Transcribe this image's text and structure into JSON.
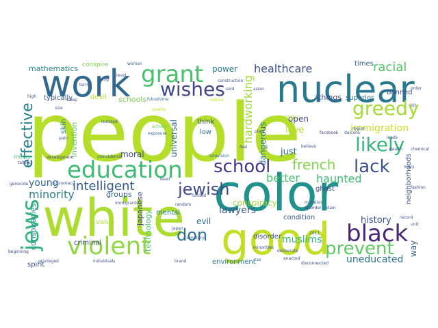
{
  "words": [
    {
      "text": "people",
      "color": "#b5de2b"
    },
    {
      "text": "white",
      "color": "#addc30"
    },
    {
      "text": "color",
      "color": "#21918c"
    },
    {
      "text": "good",
      "color": "#c2df23"
    },
    {
      "text": "nuclear",
      "color": "#2a788e"
    },
    {
      "text": "work",
      "color": "#31688e"
    },
    {
      "text": "education",
      "color": "#3fbc73"
    },
    {
      "text": "violent",
      "color": "#90d743"
    },
    {
      "text": "black",
      "color": "#482677"
    },
    {
      "text": "jews",
      "color": "#2fb47c"
    },
    {
      "text": "grant",
      "color": "#4ac16d"
    },
    {
      "text": "wishes",
      "color": "#404688"
    },
    {
      "text": "greedy",
      "color": "#a5db36"
    },
    {
      "text": "likely",
      "color": "#35b779"
    },
    {
      "text": "school",
      "color": "#453781"
    },
    {
      "text": "jewish",
      "color": "#3e4989"
    },
    {
      "text": "lack",
      "color": "#3b528b"
    },
    {
      "text": "prevent",
      "color": "#5ec962"
    },
    {
      "text": "don",
      "color": "#2c728e"
    },
    {
      "text": "effective",
      "color": "#277f8e"
    },
    {
      "text": "intelligent",
      "color": "#375a8c"
    },
    {
      "text": "french",
      "color": "#84d44b"
    },
    {
      "text": "healthcare",
      "color": "#3b528b"
    },
    {
      "text": "racial",
      "color": "#52c569"
    },
    {
      "text": "immigration",
      "color": "#c8e020"
    },
    {
      "text": "hardworking",
      "color": "#a0da39"
    },
    {
      "text": "minority",
      "color": "#287d8e"
    },
    {
      "text": "muslims",
      "color": "#35b779"
    },
    {
      "text": "uneducated",
      "color": "#2c728e"
    },
    {
      "text": "better",
      "color": "#46c06f"
    },
    {
      "text": "haunted",
      "color": "#3dbc74"
    },
    {
      "text": "young",
      "color": "#33638d"
    },
    {
      "text": "lawyers",
      "color": "#38598c"
    },
    {
      "text": "mathematics",
      "color": "#25848e"
    },
    {
      "text": "history",
      "color": "#3a538b"
    },
    {
      "text": "conspiracy",
      "color": "#9bd93c"
    },
    {
      "text": "universal",
      "color": "#31688e"
    },
    {
      "text": "invention",
      "color": "#5ec962"
    },
    {
      "text": "skin",
      "color": "#26828e"
    },
    {
      "text": "moral",
      "color": "#3e4989"
    },
    {
      "text": "groups",
      "color": "#355f8d"
    },
    {
      "text": "dangerous",
      "color": "#2a788e"
    },
    {
      "text": "conspiracies",
      "color": "#23898e"
    },
    {
      "text": "technology",
      "color": "#4ec36b"
    },
    {
      "text": "japanese",
      "color": "#3f4788"
    },
    {
      "text": "power",
      "color": "#287d8e"
    },
    {
      "text": "schools",
      "color": "#7ad151"
    },
    {
      "text": "typically",
      "color": "#38588c"
    },
    {
      "text": "just",
      "color": "#2d708e"
    },
    {
      "text": "love",
      "color": "#bade28"
    },
    {
      "text": "open",
      "color": "#404688"
    },
    {
      "text": "things",
      "color": "#404688"
    },
    {
      "text": "superior",
      "color": "#2d708e"
    },
    {
      "text": "banned",
      "color": "#3b528b"
    },
    {
      "text": "evil",
      "color": "#31688e"
    },
    {
      "text": "environment",
      "color": "#2a788e"
    },
    {
      "text": "criminal",
      "color": "#3e4989"
    },
    {
      "text": "mental",
      "color": "#2a788e"
    },
    {
      "text": "way",
      "color": "#33638d"
    },
    {
      "text": "spirit",
      "color": "#3b528b"
    },
    {
      "text": "condition",
      "color": "#365c8d"
    },
    {
      "text": "disorder",
      "color": "#3b528b"
    },
    {
      "text": "neighborhoods",
      "color": "#3b528b"
    },
    {
      "text": "value",
      "color": "#addc30"
    },
    {
      "text": "ghost",
      "color": "#3e4989"
    },
    {
      "text": "think",
      "color": "#3b528b"
    },
    {
      "text": "low",
      "color": "#31688e"
    },
    {
      "text": "devil",
      "color": "#b5de2b"
    },
    {
      "text": "conspire",
      "color": "#7fd34e"
    },
    {
      "text": "times",
      "color": "#33638d"
    },
    {
      "text": "energy",
      "color": "#b5de2b"
    },
    {
      "text": "woman",
      "color": "#31688e"
    },
    {
      "text": "high",
      "color": "#38598c"
    },
    {
      "text": "sleep",
      "color": "#3e4989"
    },
    {
      "text": "fukushima",
      "color": "#31688e"
    },
    {
      "text": "quality",
      "color": "#c2df23"
    },
    {
      "text": "activity",
      "color": "#5ec962"
    },
    {
      "text": "exposure",
      "color": "#31688e"
    },
    {
      "text": "reduce",
      "color": "#c8e020"
    },
    {
      "text": "television",
      "color": "#31688e"
    },
    {
      "text": "coincidence",
      "color": "#3b528b"
    },
    {
      "text": "development",
      "color": "#404688"
    },
    {
      "text": "genocide",
      "color": "#3e4989"
    },
    {
      "text": "supremacy",
      "color": "#38598c"
    },
    {
      "text": "immigrants",
      "color": "#3b528b"
    },
    {
      "text": "funded",
      "color": "#3b528b"
    },
    {
      "text": "cemetery",
      "color": "#365c8d"
    },
    {
      "text": "media",
      "color": "#46c06f"
    },
    {
      "text": "believe",
      "color": "#3b528b"
    },
    {
      "text": "facebook",
      "color": "#404688"
    },
    {
      "text": "dalcohs",
      "color": "#3b528b"
    },
    {
      "text": "region",
      "color": "#38598c"
    },
    {
      "text": "mutation",
      "color": "#3b528b"
    },
    {
      "text": "beginning",
      "color": "#3e4989"
    },
    {
      "text": "privileged",
      "color": "#3b528b"
    },
    {
      "text": "individuals",
      "color": "#3b528b"
    },
    {
      "text": "brand",
      "color": "#3b528b"
    },
    {
      "text": "deliberate",
      "color": "#3b528b"
    },
    {
      "text": "random",
      "color": "#3b528b"
    },
    {
      "text": "minorities",
      "color": "#404688"
    },
    {
      "text": "tax",
      "color": "#31688e"
    },
    {
      "text": "japan",
      "color": "#3b528b"
    },
    {
      "text": "2011",
      "color": "#31688e"
    },
    {
      "text": "disorder",
      "color": "#3e4989"
    },
    {
      "text": "order",
      "color": "#3b528b"
    },
    {
      "text": "construction",
      "color": "#3b528b"
    },
    {
      "text": "leads",
      "color": "#38598c"
    },
    {
      "text": "talking",
      "color": "#3e4989"
    },
    {
      "text": "disconnected",
      "color": "#3e4989"
    },
    {
      "text": "mary",
      "color": "#3b528b"
    },
    {
      "text": "fashion",
      "color": "#3e4989"
    },
    {
      "text": "plant",
      "color": "#3b528b"
    },
    {
      "text": "feel",
      "color": "#3b528b"
    },
    {
      "text": "level",
      "color": "#3b528b"
    },
    {
      "text": "sold",
      "color": "#3b528b"
    },
    {
      "text": "asian",
      "color": "#3b528b"
    },
    {
      "text": "pain",
      "color": "#3b528b"
    },
    {
      "text": "term",
      "color": "#3b528b"
    },
    {
      "text": "long",
      "color": "#3b528b"
    },
    {
      "text": "size",
      "color": "#3b528b"
    },
    {
      "text": "bit",
      "color": "#3b528b"
    },
    {
      "text": "isolated",
      "color": "#3b528b"
    },
    {
      "text": "wealth",
      "color": "#3b528b"
    },
    {
      "text": "chemical",
      "color": "#3b528b"
    },
    {
      "text": "record",
      "color": "#3b528b"
    },
    {
      "text": "unit",
      "color": "#3b528b"
    },
    {
      "text": "level",
      "color": "#3b528b"
    },
    {
      "text": "enacted",
      "color": "#3b528b"
    },
    {
      "text": "plain",
      "color": "#3b528b"
    }
  ]
}
